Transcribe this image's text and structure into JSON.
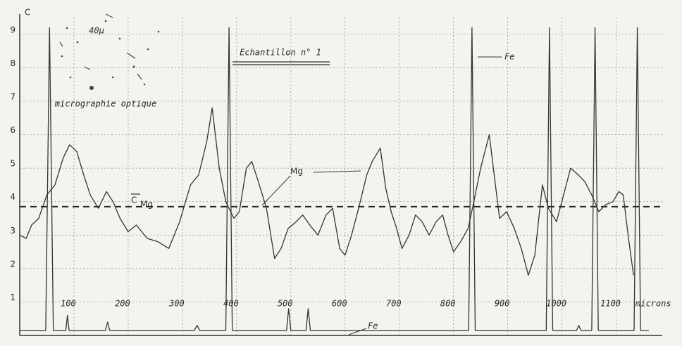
{
  "chart_data": {
    "type": "line",
    "title": "Echantillon n° 1",
    "x_label": "microns",
    "y_label": "C",
    "xlim": [
      0,
      1185
    ],
    "ylim": [
      0,
      9.5
    ],
    "xticks": [
      100,
      200,
      300,
      400,
      500,
      600,
      700,
      800,
      900,
      1000,
      1100
    ],
    "yticks": [
      1,
      2,
      3,
      4,
      5,
      6,
      7,
      8,
      9
    ],
    "grid": true,
    "series": [
      {
        "name": "Mg",
        "color": "#333333",
        "x": [
          0,
          12,
          22,
          35,
          50,
          65,
          80,
          92,
          105,
          118,
          130,
          145,
          160,
          172,
          185,
          200,
          215,
          235,
          255,
          275,
          295,
          315,
          330,
          345,
          355,
          368,
          380,
          395,
          405,
          418,
          428,
          440,
          455,
          470,
          482,
          495,
          510,
          522,
          535,
          550,
          565,
          577,
          590,
          600,
          612,
          625,
          640,
          650,
          665,
          675,
          685,
          695,
          705,
          718,
          730,
          742,
          755,
          768,
          780,
          790,
          800,
          813,
          827,
          840,
          850,
          866,
          875,
          885,
          898,
          912,
          925,
          938,
          950,
          964,
          975,
          990,
          1003,
          1016,
          1030,
          1042,
          1055,
          1068,
          1080,
          1094,
          1105,
          1113,
          1122,
          1132
        ],
        "values": [
          3.0,
          2.9,
          3.3,
          3.5,
          4.2,
          4.5,
          5.3,
          5.7,
          5.5,
          4.8,
          4.2,
          3.8,
          4.3,
          4.0,
          3.5,
          3.1,
          3.3,
          2.9,
          2.8,
          2.6,
          3.4,
          4.5,
          4.8,
          5.8,
          6.8,
          5.0,
          4.0,
          3.5,
          3.7,
          5.0,
          5.2,
          4.6,
          3.8,
          2.3,
          2.6,
          3.2,
          3.4,
          3.6,
          3.3,
          3.0,
          3.6,
          3.8,
          2.6,
          2.4,
          3.0,
          3.8,
          4.8,
          5.2,
          5.6,
          4.4,
          3.7,
          3.2,
          2.6,
          3.0,
          3.6,
          3.4,
          3.0,
          3.4,
          3.6,
          3.0,
          2.5,
          2.8,
          3.2,
          4.2,
          5.0,
          6.0,
          4.8,
          3.5,
          3.7,
          3.2,
          2.6,
          1.8,
          2.4,
          4.5,
          3.8,
          3.4,
          4.2,
          5.0,
          4.8,
          4.6,
          4.2,
          3.7,
          3.9,
          4.0,
          4.3,
          4.2,
          3.0,
          1.8
        ]
      },
      {
        "name": "Fe",
        "color": "#333333",
        "x": [
          0,
          48,
          55,
          62,
          85,
          88,
          91,
          158,
          162,
          166,
          322,
          327,
          332,
          380,
          386,
          392,
          492,
          496,
          500,
          528,
          532,
          536,
          828,
          834,
          840,
          971,
          977,
          983,
          1027,
          1031,
          1035,
          1055,
          1061,
          1067,
          1133,
          1139,
          1145,
          1160
        ],
        "values": [
          0.15,
          0.15,
          9.2,
          0.15,
          0.15,
          0.6,
          0.15,
          0.15,
          0.4,
          0.15,
          0.15,
          0.3,
          0.15,
          0.15,
          9.2,
          0.15,
          0.15,
          0.8,
          0.15,
          0.15,
          0.8,
          0.15,
          0.15,
          9.2,
          0.15,
          0.15,
          9.2,
          0.15,
          0.15,
          0.3,
          0.15,
          0.15,
          9.2,
          0.15,
          0.15,
          9.2,
          0.15,
          0.15
        ]
      }
    ],
    "mean": {
      "label": "C",
      "label_sub": "Mg",
      "value": 3.85
    },
    "inset": {
      "caption": "micrographie optique",
      "scale": "40µ"
    }
  }
}
